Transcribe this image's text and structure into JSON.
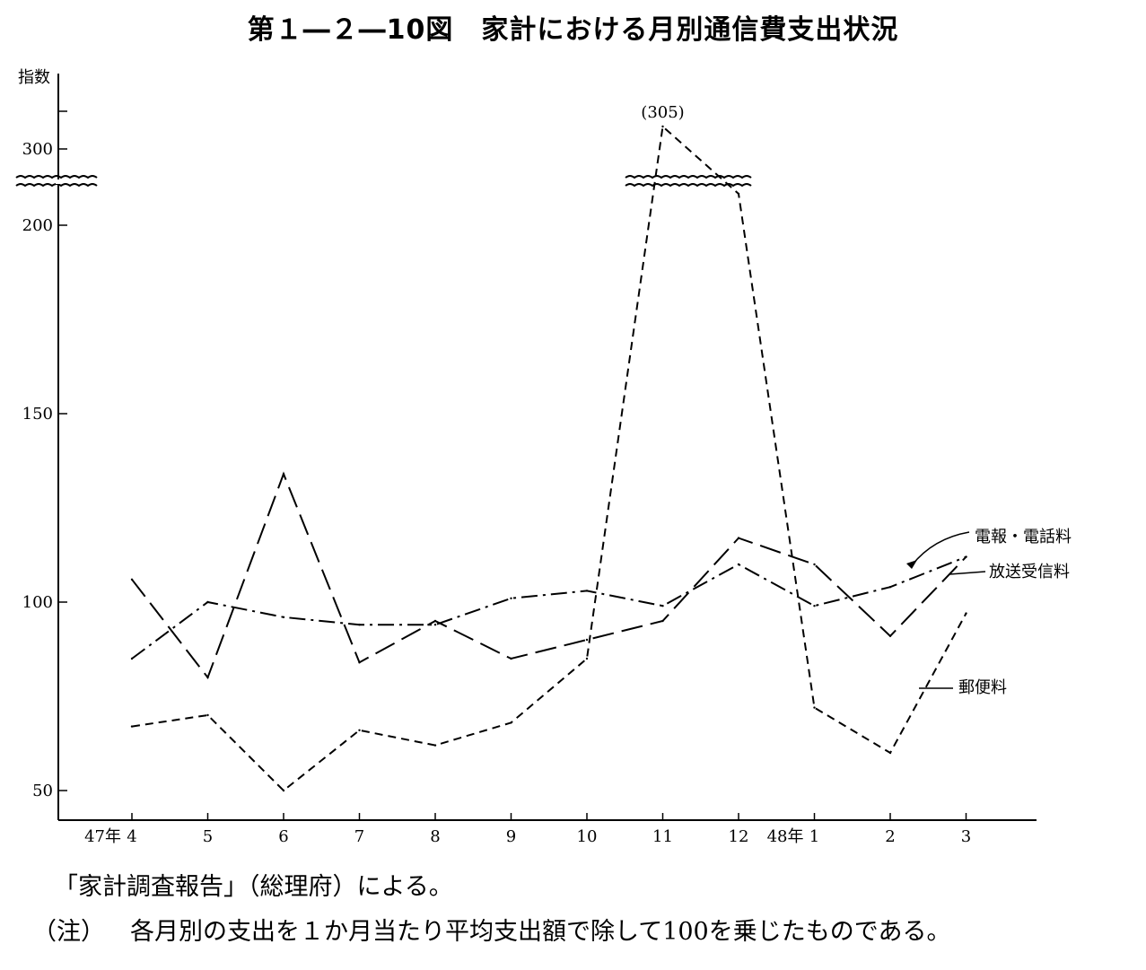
{
  "title": "第１―２―10図　家計における月別通信費支出状況",
  "source": "「家計調査報告」（総理府）による。",
  "note_label": "（注）",
  "note_text": "各月別の支出を１か月当たり平均支出額で除して100を乗じたものである。",
  "chart_data": {
    "type": "line",
    "ylabel": "指数",
    "yticks": [
      50,
      100,
      150,
      200,
      300
    ],
    "axis_break": true,
    "categories": [
      "4",
      "5",
      "6",
      "7",
      "8",
      "9",
      "10",
      "11",
      "12",
      "1",
      "2",
      "3"
    ],
    "year_labels": [
      {
        "at": "4",
        "label": "47年"
      },
      {
        "at": "1",
        "label": "48年"
      }
    ],
    "peak_annotation": "(305)",
    "series": [
      {
        "name": "電報・電話料",
        "style": "long-dash",
        "values": [
          106,
          80,
          134,
          84,
          95,
          85,
          90,
          95,
          117,
          110,
          91,
          112
        ]
      },
      {
        "name": "放送受信料",
        "style": "dash-dot",
        "values": [
          85,
          100,
          96,
          94,
          94,
          101,
          103,
          99,
          110,
          99,
          104,
          112
        ]
      },
      {
        "name": "郵便料",
        "style": "short-dash",
        "values": [
          67,
          70,
          50,
          66,
          62,
          68,
          85,
          305,
          290,
          72,
          60,
          97
        ]
      }
    ]
  }
}
